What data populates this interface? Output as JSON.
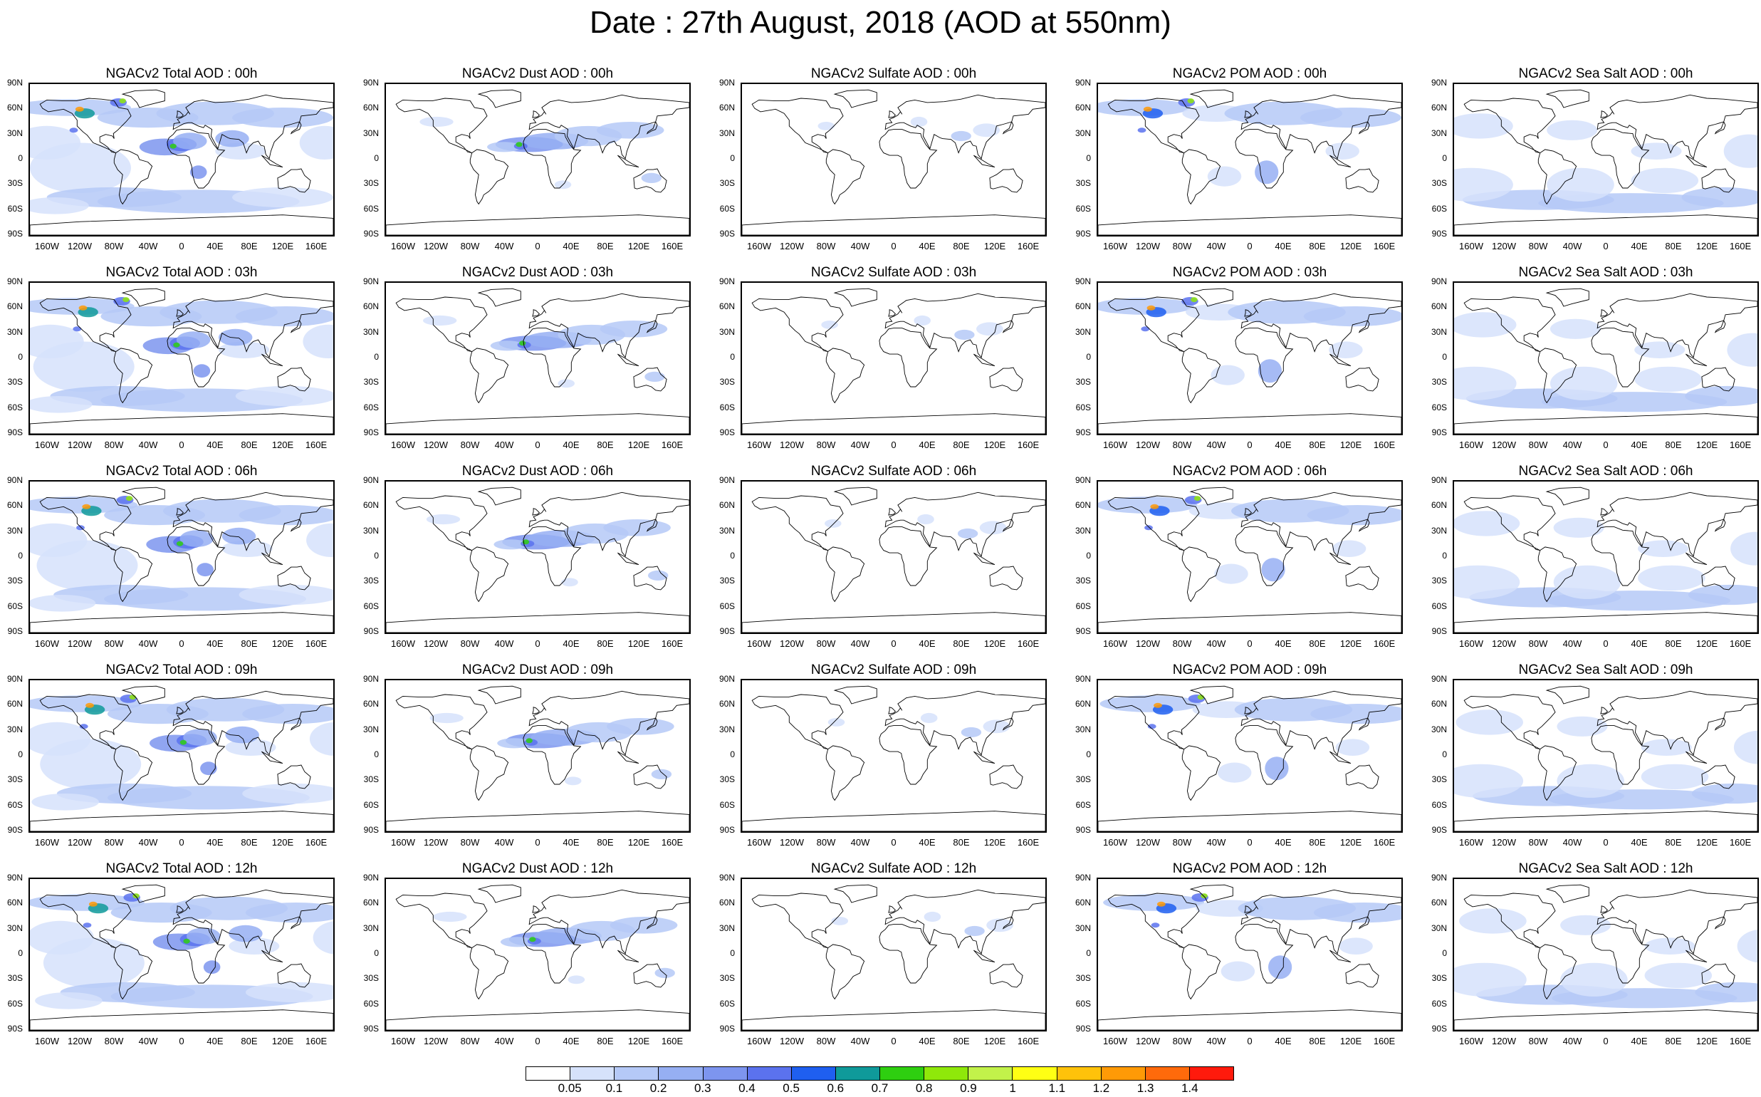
{
  "title": "Date : 27th August, 2018 (AOD at 550nm)",
  "latitude_labels": [
    "90N",
    "60N",
    "30N",
    "0",
    "30S",
    "60S",
    "90S"
  ],
  "longitude_labels": [
    "160W",
    "120W",
    "80W",
    "40W",
    "0",
    "40E",
    "80E",
    "120E",
    "160E"
  ],
  "panels": [
    [
      "NGACv2 Total AOD : 00h",
      "NGACv2 Dust AOD : 00h",
      "NGACv2 Sulfate AOD : 00h",
      "NGACv2 POM AOD : 00h",
      "NGACv2 Sea Salt AOD : 00h"
    ],
    [
      "NGACv2 Total AOD : 03h",
      "NGACv2 Dust AOD : 03h",
      "NGACv2 Sulfate AOD : 03h",
      "NGACv2 POM AOD : 03h",
      "NGACv2 Sea Salt AOD : 03h"
    ],
    [
      "NGACv2 Total AOD : 06h",
      "NGACv2 Dust AOD : 06h",
      "NGACv2 Sulfate AOD : 06h",
      "NGACv2 POM AOD : 06h",
      "NGACv2 Sea Salt AOD : 06h"
    ],
    [
      "NGACv2 Total AOD : 09h",
      "NGACv2 Dust AOD : 09h",
      "NGACv2 Sulfate AOD : 09h",
      "NGACv2 POM AOD : 09h",
      "NGACv2 Sea Salt  AOD : 09h"
    ],
    [
      "NGACv2 Total AOD  : 12h",
      "NGACv2 Dust AOD : 12h",
      "NGACv2 Sulfate AOD : 12h",
      "NGACv2 POM  AOD : 12h",
      "NGACv2 Sea Salt  AOD : 12h"
    ]
  ],
  "colorbar": {
    "labels": [
      "0.05",
      "0.1",
      "0.2",
      "0.3",
      "0.4",
      "0.5",
      "0.6",
      "0.7",
      "0.8",
      "0.9",
      "1",
      "1.1",
      "1.2",
      "1.3",
      "1.4"
    ],
    "colors": [
      "#ffffff",
      "#d6e2fb",
      "#b5c9f7",
      "#96aff3",
      "#7d95ef",
      "#5b72ee",
      "#1f5ff0",
      "#0f9a9a",
      "#2ecf10",
      "#8fe80a",
      "#c2f24a",
      "#ffff14",
      "#ffc20a",
      "#ff9a06",
      "#ff6a0b",
      "#ff1a0c"
    ]
  }
}
